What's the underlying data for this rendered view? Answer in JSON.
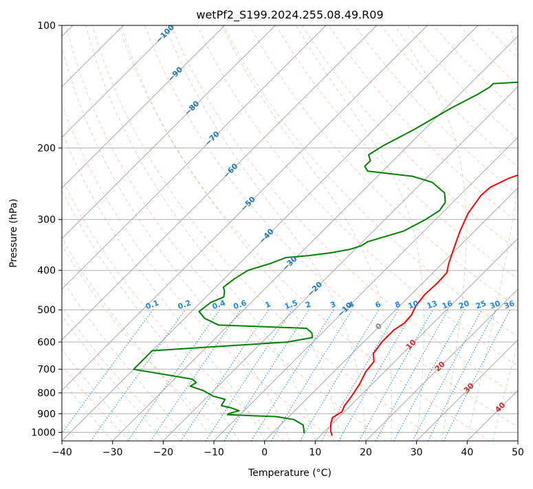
{
  "chart_data": {
    "type": "line",
    "title": "wetPf2_S199.2024.255.08.49.R09",
    "xlabel": "Temperature (°C)",
    "ylabel": "Pressure (hPa)",
    "xlim": [
      -40,
      50
    ],
    "ylim": [
      1050,
      100
    ],
    "y_scale": "log",
    "grid": true,
    "x_ticks": [
      "−40",
      "−30",
      "−20",
      "−10",
      "0",
      "10",
      "20",
      "30",
      "40",
      "50"
    ],
    "x_tick_values": [
      -40,
      -30,
      -20,
      -10,
      0,
      10,
      20,
      30,
      40,
      50
    ],
    "y_ticks": [
      "100",
      "200",
      "300",
      "400",
      "500",
      "600",
      "700",
      "800",
      "900",
      "1000"
    ],
    "y_tick_values": [
      100,
      200,
      300,
      400,
      500,
      600,
      700,
      800,
      900,
      1000
    ],
    "series": [
      {
        "color": "#ff0000",
        "points": [
          [
            12.3,
            1020
          ],
          [
            11.0,
            990
          ],
          [
            9.6,
            950
          ],
          [
            8.8,
            920
          ],
          [
            9.5,
            890
          ],
          [
            8.8,
            860
          ],
          [
            8.4,
            820
          ],
          [
            7.5,
            760
          ],
          [
            6.3,
            710
          ],
          [
            5.9,
            670
          ],
          [
            4.2,
            640
          ],
          [
            3.6,
            600
          ],
          [
            3.6,
            560
          ],
          [
            4.3,
            540
          ],
          [
            4.1,
            515
          ],
          [
            3.2,
            490
          ],
          [
            2.7,
            460
          ],
          [
            2.9,
            430
          ],
          [
            2.7,
            405
          ],
          [
            1.3,
            385
          ],
          [
            -0.9,
            350
          ],
          [
            -2.9,
            320
          ],
          [
            -4.8,
            290
          ],
          [
            -5.8,
            262
          ],
          [
            -5.6,
            250
          ],
          [
            -3.8,
            238
          ],
          [
            0.6,
            222
          ],
          [
            5.0,
            208
          ],
          [
            9.5,
            195
          ],
          [
            11.5,
            181
          ],
          [
            14.5,
            166
          ],
          [
            17.3,
            154
          ],
          [
            19.5,
            144
          ],
          [
            22.6,
            135
          ],
          [
            25.0,
            128
          ],
          [
            25.8,
            123
          ],
          [
            26.5,
            121
          ],
          [
            28.5,
            114
          ],
          [
            30.0,
            108
          ],
          [
            31.5,
            102
          ],
          [
            32.3,
            100
          ]
        ]
      },
      {
        "color": "#008000",
        "points": [
          [
            6.3,
            1005
          ],
          [
            4.5,
            960
          ],
          [
            1.5,
            930
          ],
          [
            -2.5,
            915
          ],
          [
            -12.5,
            905
          ],
          [
            -12.5,
            900
          ],
          [
            -11.0,
            885
          ],
          [
            -13.3,
            870
          ],
          [
            -15.5,
            860
          ],
          [
            -16.0,
            830
          ],
          [
            -19.0,
            815
          ],
          [
            -22.0,
            790
          ],
          [
            -25.5,
            770
          ],
          [
            -25.0,
            755
          ],
          [
            -26.5,
            740
          ],
          [
            -40.0,
            700
          ],
          [
            -40.0,
            630
          ],
          [
            -15.0,
            600
          ],
          [
            -11.0,
            585
          ],
          [
            -12.0,
            570
          ],
          [
            -14.0,
            555
          ],
          [
            -32.0,
            545
          ],
          [
            -36.0,
            525
          ],
          [
            -38.5,
            505
          ],
          [
            -38.0,
            480
          ],
          [
            -36.5,
            465
          ],
          [
            -37.5,
            450
          ],
          [
            -38.5,
            440
          ],
          [
            -38.0,
            420
          ],
          [
            -37.0,
            400
          ],
          [
            -34.0,
            385
          ],
          [
            -32.0,
            372
          ],
          [
            -28.0,
            368
          ],
          [
            -24.0,
            362
          ],
          [
            -21.0,
            355
          ],
          [
            -19.5,
            348
          ],
          [
            -19.0,
            340
          ],
          [
            -14.0,
            320
          ],
          [
            -12.0,
            300
          ],
          [
            -11.0,
            285
          ],
          [
            -11.5,
            272
          ],
          [
            -13.5,
            258
          ],
          [
            -18.0,
            243
          ],
          [
            -23.0,
            235
          ],
          [
            -33.0,
            228
          ],
          [
            -34.5,
            222
          ],
          [
            -34.5,
            215
          ],
          [
            -36.0,
            208
          ],
          [
            -35.0,
            198
          ],
          [
            -32.0,
            180
          ],
          [
            -29.0,
            160
          ],
          [
            -26.5,
            148
          ],
          [
            -25.5,
            142
          ],
          [
            -25.5,
            139
          ],
          [
            -17.0,
            137
          ],
          [
            -14.5,
            132
          ],
          [
            -13.5,
            125
          ],
          [
            -10.5,
            114
          ],
          [
            -7.5,
            106
          ],
          [
            -5.5,
            100
          ]
        ]
      }
    ],
    "skew_factor": 35,
    "isotherms_step": 10,
    "dry_adiabat_thetas_c": [
      -40,
      -30,
      -20,
      -10,
      0,
      10,
      20,
      30,
      40,
      50,
      60,
      70,
      80,
      90,
      100,
      110,
      120,
      130,
      140,
      150,
      160,
      170,
      180,
      190,
      200
    ],
    "moist_adiabat_starts_c": [
      -30,
      -25,
      -20,
      -15,
      -10,
      -5,
      0,
      5,
      10,
      15,
      20,
      25,
      30,
      35,
      40,
      45
    ],
    "mixing_ratio_lines": {
      "color": "#1e88e5",
      "labels_at_hpa": 500,
      "values": [
        0.1,
        0.2,
        0.4,
        0.6,
        1,
        1.5,
        2,
        3,
        4,
        6,
        8,
        10,
        13,
        16,
        20,
        25,
        30,
        36
      ]
    },
    "isotherm_labels": [
      {
        "text": "−100",
        "temp_c": -100,
        "p_hpa": 105,
        "color": "#1f77b4"
      },
      {
        "text": "−90",
        "temp_c": -90,
        "p_hpa": 132,
        "color": "#1f77b4"
      },
      {
        "text": "−80",
        "temp_c": -80,
        "p_hpa": 160,
        "color": "#1f77b4"
      },
      {
        "text": "−70",
        "temp_c": -70,
        "p_hpa": 190,
        "color": "#1f77b4"
      },
      {
        "text": "−60",
        "temp_c": -60,
        "p_hpa": 228,
        "color": "#1f77b4"
      },
      {
        "text": "−50",
        "temp_c": -50,
        "p_hpa": 275,
        "color": "#1f77b4"
      },
      {
        "text": "−40",
        "temp_c": -40,
        "p_hpa": 330,
        "color": "#1f77b4"
      },
      {
        "text": "−30",
        "temp_c": -30,
        "p_hpa": 385,
        "color": "#1f77b4"
      },
      {
        "text": "−20",
        "temp_c": -20,
        "p_hpa": 445,
        "color": "#1f77b4"
      },
      {
        "text": "−10",
        "temp_c": -10,
        "p_hpa": 500,
        "color": "#1f77b4"
      },
      {
        "text": "0",
        "temp_c": 0,
        "p_hpa": 550,
        "color": "#808080"
      },
      {
        "text": "10",
        "temp_c": 10,
        "p_hpa": 610,
        "color": "#d62728"
      },
      {
        "text": "20",
        "temp_c": 20,
        "p_hpa": 690,
        "color": "#d62728"
      },
      {
        "text": "30",
        "temp_c": 30,
        "p_hpa": 780,
        "color": "#d62728"
      },
      {
        "text": "40",
        "temp_c": 40,
        "p_hpa": 870,
        "color": "#d62728"
      }
    ]
  }
}
